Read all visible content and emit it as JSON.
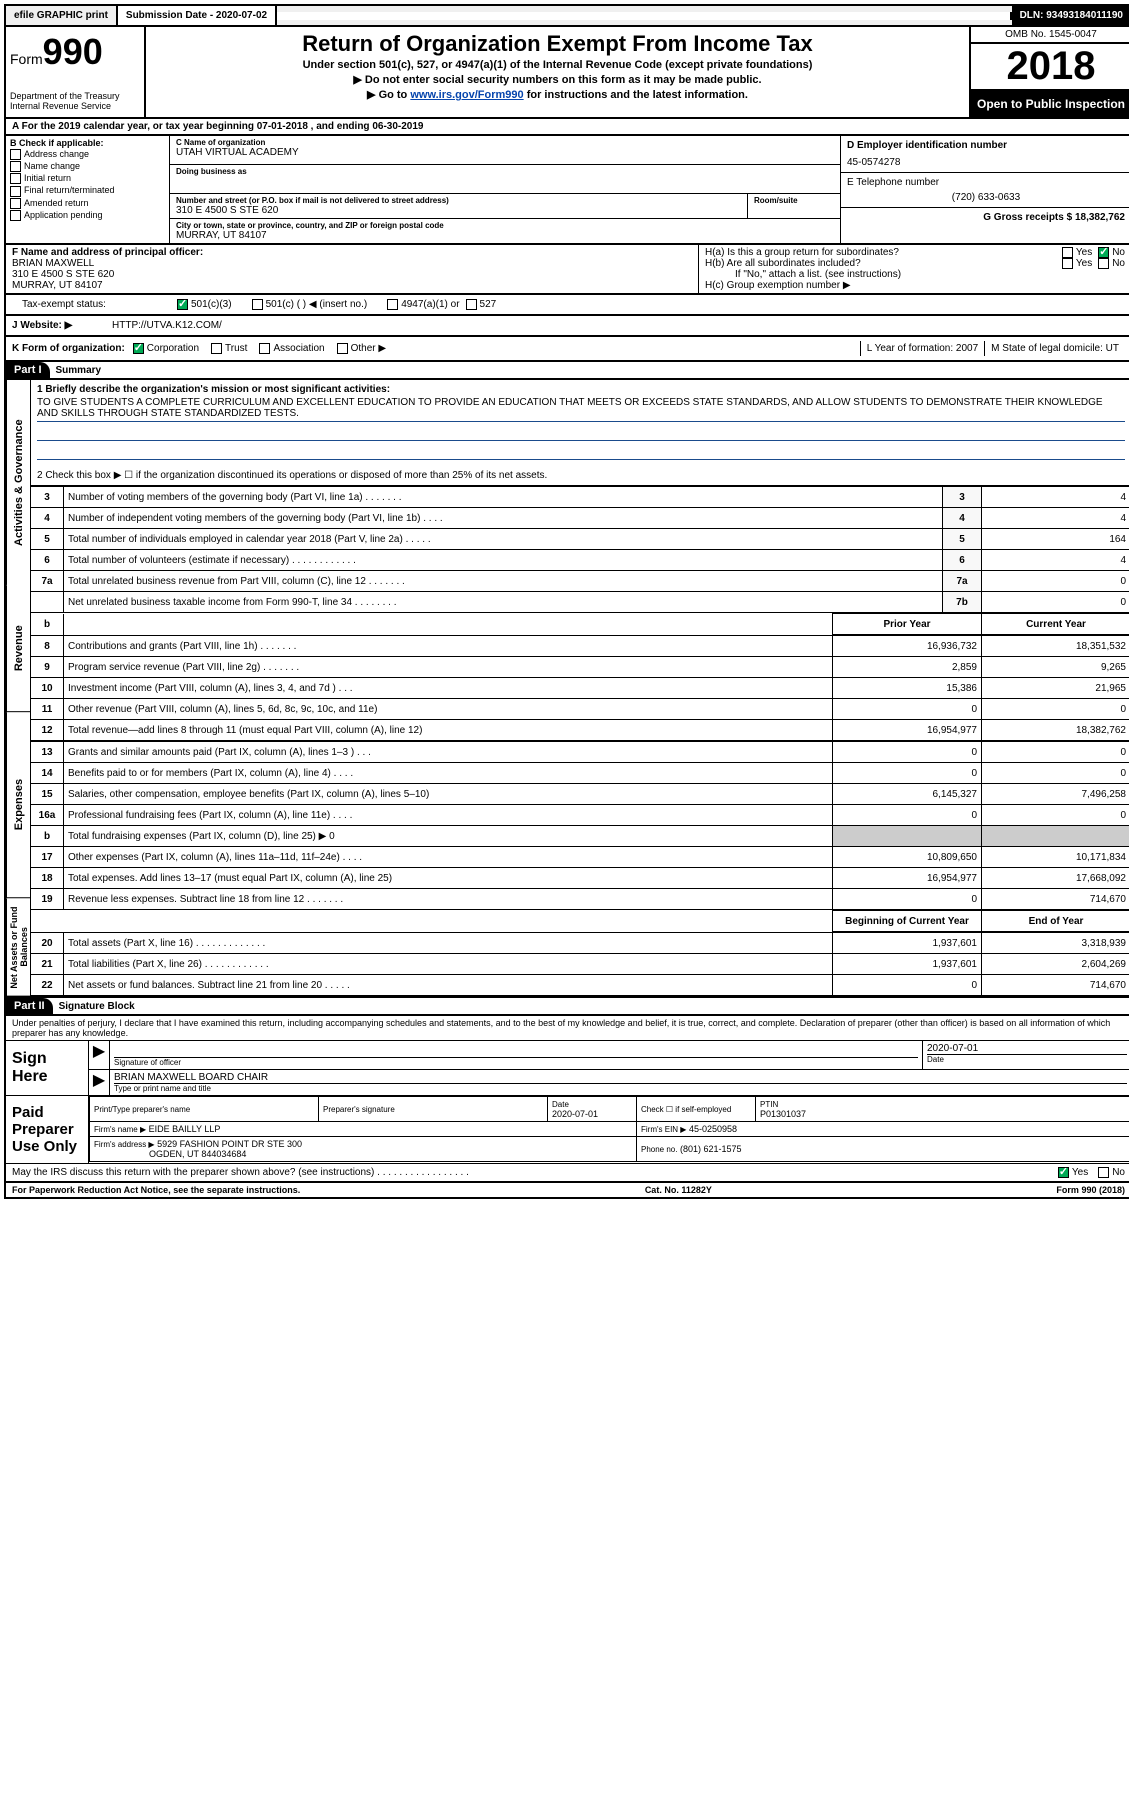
{
  "topbar": {
    "efile": "efile GRAPHIC print",
    "submission_label": "Submission Date - 2020-07-02",
    "dln": "DLN: 93493184011190"
  },
  "header": {
    "form_prefix": "Form",
    "form_number": "990",
    "dept1": "Department of the Treasury",
    "dept2": "Internal Revenue Service",
    "title": "Return of Organization Exempt From Income Tax",
    "subtitle1": "Under section 501(c), 527, or 4947(a)(1) of the Internal Revenue Code (except private foundations)",
    "subtitle2": "▶ Do not enter social security numbers on this form as it may be made public.",
    "subtitle3_pre": "▶ Go to ",
    "subtitle3_link": "www.irs.gov/Form990",
    "subtitle3_post": " for instructions and the latest information.",
    "omb": "OMB No. 1545-0047",
    "year": "2018",
    "open": "Open to Public Inspection"
  },
  "rowA": "A For the 2019 calendar year, or tax year beginning 07-01-2018    , and ending 06-30-2019",
  "sectionB": {
    "label": "B Check if applicable:",
    "opts": [
      "Address change",
      "Name change",
      "Initial return",
      "Final return/terminated",
      "Amended return",
      "Application pending"
    ],
    "c_label": "C Name of organization",
    "c_name": "UTAH VIRTUAL ACADEMY",
    "dba_label": "Doing business as",
    "addr_label": "Number and street (or P.O. box if mail is not delivered to street address)",
    "room_label": "Room/suite",
    "addr": "310 E 4500 S STE 620",
    "city_label": "City or town, state or province, country, and ZIP or foreign postal code",
    "city": "MURRAY, UT  84107",
    "d_label": "D Employer identification number",
    "d_val": "45-0574278",
    "e_label": "E Telephone number",
    "e_val": "(720) 633-0633",
    "g_label": "G Gross receipts $ 18,382,762",
    "f_label": "F  Name and address of principal officer:",
    "f_name": "BRIAN MAXWELL",
    "f_addr1": "310 E 4500 S STE 620",
    "f_addr2": "MURRAY, UT  84107",
    "ha": "H(a)  Is this a group return for subordinates?",
    "hb": "H(b)  Are all subordinates included?",
    "h_note": "If \"No,\" attach a list. (see instructions)",
    "hc": "H(c)  Group exemption number ▶",
    "yes": "Yes",
    "no": "No"
  },
  "taxRow": {
    "label": "Tax-exempt status:",
    "o1": "501(c)(3)",
    "o2": "501(c) (   ) ◀ (insert no.)",
    "o3": "4947(a)(1) or",
    "o4": "527"
  },
  "webRow": {
    "label": "J   Website: ▶",
    "val": "HTTP://UTVA.K12.COM/"
  },
  "kRow": {
    "label": "K Form of organization:",
    "o1": "Corporation",
    "o2": "Trust",
    "o3": "Association",
    "o4": "Other ▶",
    "l": "L Year of formation: 2007",
    "m": "M State of legal domicile: UT"
  },
  "part1": {
    "header": "Part I",
    "title": "Summary",
    "line1_label": "1  Briefly describe the organization's mission or most significant activities:",
    "mission": "TO GIVE STUDENTS A COMPLETE CURRICULUM AND EXCELLENT EDUCATION TO PROVIDE AN EDUCATION THAT MEETS OR EXCEEDS STATE STANDARDS, AND ALLOW STUDENTS TO DEMONSTRATE THEIR KNOWLEDGE AND SKILLS THROUGH STATE STANDARDIZED TESTS.",
    "line2": "2   Check this box ▶ ☐  if the organization discontinued its operations or disposed of more than 25% of its net assets.",
    "vtab_ag": "Activities & Governance",
    "vtab_rev": "Revenue",
    "vtab_exp": "Expenses",
    "vtab_net": "Net Assets or Fund Balances",
    "ag_rows": [
      {
        "n": "3",
        "d": "Number of voting members of the governing body (Part VI, line 1a)  .   .   .   .   .   .   .",
        "b": "3",
        "v": "4"
      },
      {
        "n": "4",
        "d": "Number of independent voting members of the governing body (Part VI, line 1b)  .   .   .   .",
        "b": "4",
        "v": "4"
      },
      {
        "n": "5",
        "d": "Total number of individuals employed in calendar year 2018 (Part V, line 2a)  .   .   .   .   .",
        "b": "5",
        "v": "164"
      },
      {
        "n": "6",
        "d": "Total number of volunteers (estimate if necessary)   .   .   .   .   .   .   .   .   .   .   .   .",
        "b": "6",
        "v": "4"
      },
      {
        "n": "7a",
        "d": "Total unrelated business revenue from Part VIII, column (C), line 12  .   .   .   .   .   .   .",
        "b": "7a",
        "v": "0"
      },
      {
        "n": "",
        "d": "Net unrelated business taxable income from Form 990-T, line 34   .   .   .   .   .   .   .   .",
        "b": "7b",
        "v": "0"
      }
    ],
    "prior_hdr": "Prior Year",
    "current_hdr": "Current Year",
    "rev_rows": [
      {
        "n": "8",
        "d": "Contributions and grants (Part VIII, line 1h)  .   .   .   .   .   .   .",
        "p": "16,936,732",
        "c": "18,351,532"
      },
      {
        "n": "9",
        "d": "Program service revenue (Part VIII, line 2g)  .   .   .   .   .   .   .",
        "p": "2,859",
        "c": "9,265"
      },
      {
        "n": "10",
        "d": "Investment income (Part VIII, column (A), lines 3, 4, and 7d )  .   .   .",
        "p": "15,386",
        "c": "21,965"
      },
      {
        "n": "11",
        "d": "Other revenue (Part VIII, column (A), lines 5, 6d, 8c, 9c, 10c, and 11e)",
        "p": "0",
        "c": "0"
      },
      {
        "n": "12",
        "d": "Total revenue—add lines 8 through 11 (must equal Part VIII, column (A), line 12)",
        "p": "16,954,977",
        "c": "18,382,762"
      }
    ],
    "exp_rows": [
      {
        "n": "13",
        "d": "Grants and similar amounts paid (Part IX, column (A), lines 1–3 )  .   .   .",
        "p": "0",
        "c": "0"
      },
      {
        "n": "14",
        "d": "Benefits paid to or for members (Part IX, column (A), line 4)  .   .   .   .",
        "p": "0",
        "c": "0"
      },
      {
        "n": "15",
        "d": "Salaries, other compensation, employee benefits (Part IX, column (A), lines 5–10)",
        "p": "6,145,327",
        "c": "7,496,258"
      },
      {
        "n": "16a",
        "d": "Professional fundraising fees (Part IX, column (A), line 11e)  .   .   .   .",
        "p": "0",
        "c": "0"
      },
      {
        "n": "b",
        "d": "Total fundraising expenses (Part IX, column (D), line 25) ▶ 0",
        "p": "",
        "c": "",
        "shade": true
      },
      {
        "n": "17",
        "d": "Other expenses (Part IX, column (A), lines 11a–11d, 11f–24e)  .   .   .   .",
        "p": "10,809,650",
        "c": "10,171,834"
      },
      {
        "n": "18",
        "d": "Total expenses. Add lines 13–17 (must equal Part IX, column (A), line 25)",
        "p": "16,954,977",
        "c": "17,668,092"
      },
      {
        "n": "19",
        "d": "Revenue less expenses. Subtract line 18 from line 12  .   .   .   .   .   .   .",
        "p": "0",
        "c": "714,670"
      }
    ],
    "bocy_hdr": "Beginning of Current Year",
    "eoy_hdr": "End of Year",
    "net_rows": [
      {
        "n": "20",
        "d": "Total assets (Part X, line 16)  .   .   .   .   .   .   .   .   .   .   .   .   .",
        "p": "1,937,601",
        "c": "3,318,939"
      },
      {
        "n": "21",
        "d": "Total liabilities (Part X, line 26)  .   .   .   .   .   .   .   .   .   .   .   .",
        "p": "1,937,601",
        "c": "2,604,269"
      },
      {
        "n": "22",
        "d": "Net assets or fund balances. Subtract line 21 from line 20  .   .   .   .   .",
        "p": "0",
        "c": "714,670"
      }
    ]
  },
  "part2": {
    "header": "Part II",
    "title": "Signature Block",
    "penalty": "Under penalties of perjury, I declare that I have examined this return, including accompanying schedules and statements, and to the best of my knowledge and belief, it is true, correct, and complete. Declaration of preparer (other than officer) is based on all information of which preparer has any knowledge.",
    "sign_here": "Sign Here",
    "sig_officer": "Signature of officer",
    "sig_date": "2020-07-01",
    "date_label": "Date",
    "officer_name": "BRIAN MAXWELL  BOARD CHAIR",
    "type_label": "Type or print name and title",
    "paid_prep": "Paid Preparer Use Only",
    "prep_name_label": "Print/Type preparer's name",
    "prep_sig_label": "Preparer's signature",
    "prep_date": "2020-07-01",
    "check_self": "Check ☐  if self-employed",
    "ptin_label": "PTIN",
    "ptin": "P01301037",
    "firm_name_label": "Firm's name    ▶",
    "firm_name": "EIDE BAILLY LLP",
    "firm_ein_label": "Firm's EIN ▶",
    "firm_ein": "45-0250958",
    "firm_addr_label": "Firm's address ▶",
    "firm_addr1": "5929 FASHION POINT DR STE 300",
    "firm_addr2": "OGDEN, UT  844034684",
    "phone_label": "Phone no.",
    "phone": "(801) 621-1575",
    "discuss": "May the IRS discuss this return with the preparer shown above? (see instructions)   .   .   .   .   .   .   .   .   .   .   .   .   .   .   .   .   ."
  },
  "footer": {
    "left": "For Paperwork Reduction Act Notice, see the separate instructions.",
    "mid": "Cat. No. 11282Y",
    "right": "Form 990 (2018)"
  }
}
